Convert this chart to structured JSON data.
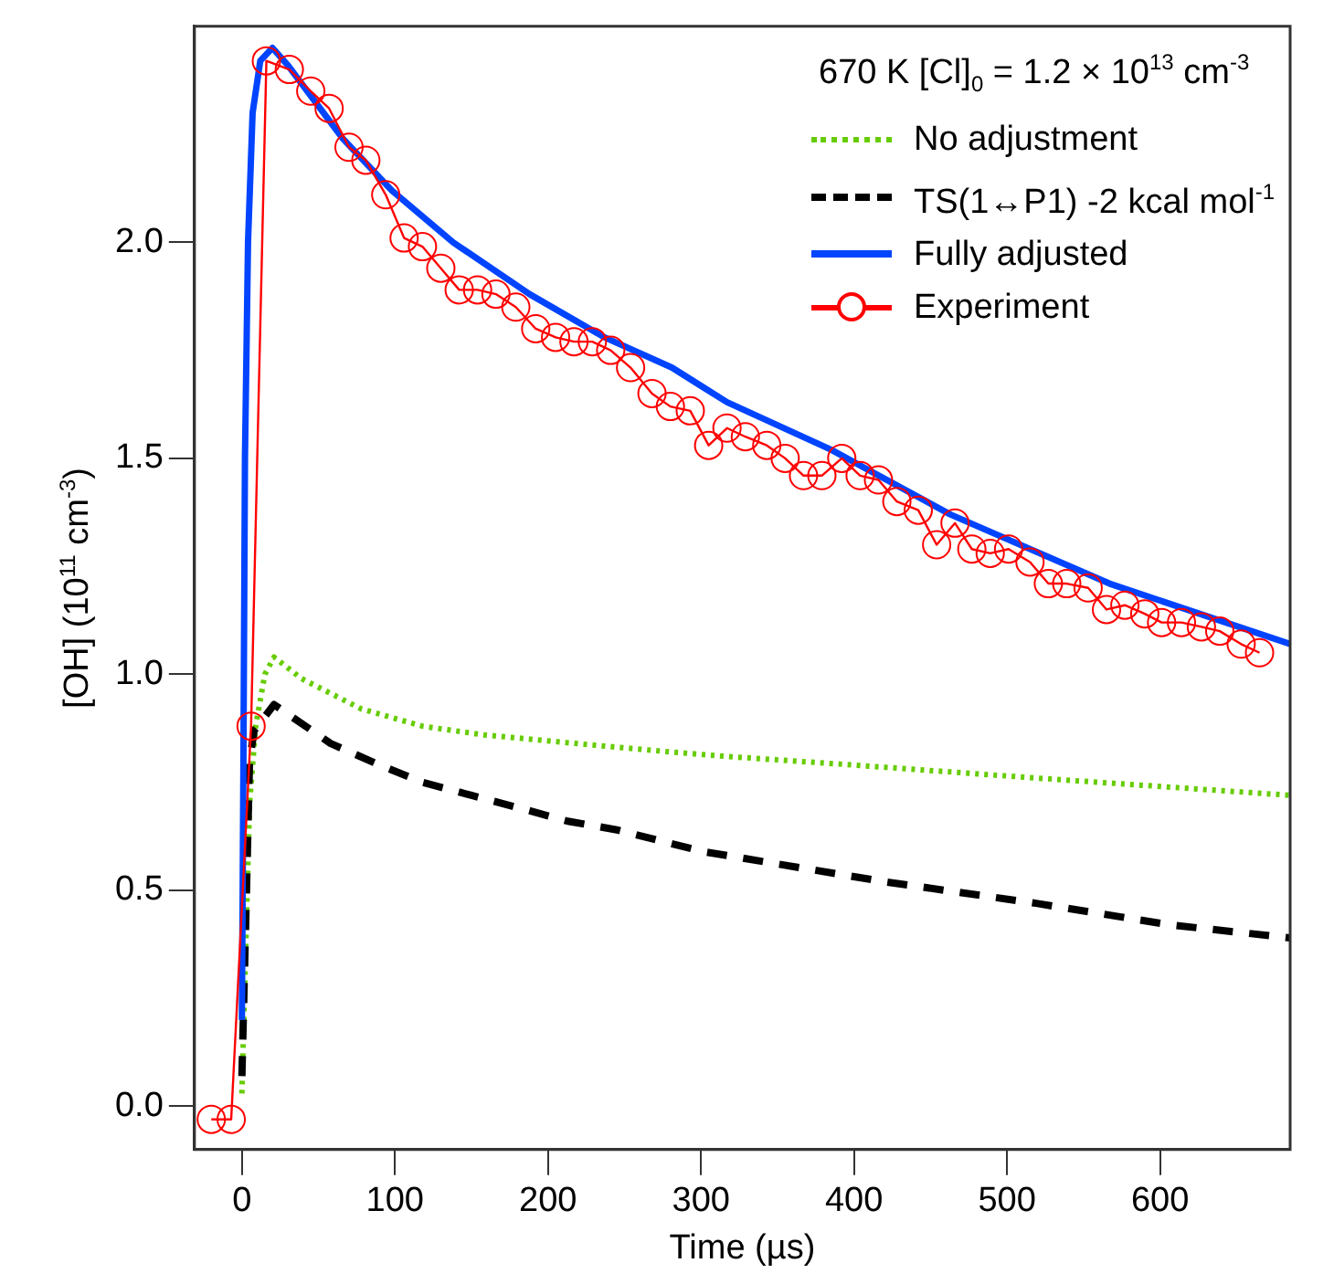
{
  "chart_data": {
    "type": "line",
    "xlabel": "Time (µs)",
    "ylabel": "[OH] (10$^{11}$ cm$^{-3}$)",
    "legend_title": "670 K [Cl]$_{0}$ = 1.2 × 10$^{13}$ cm$^{-3}$",
    "legend": "top right",
    "grid": false,
    "xlim": [
      -31,
      685
    ],
    "xticks": [
      0,
      100,
      200,
      300,
      400,
      500,
      600
    ],
    "ylim": [
      -0.1,
      2.5
    ],
    "yticks": [
      {
        "value": 0,
        "label": "0.0"
      },
      0.5,
      {
        "value": 1,
        "label": "1.0"
      },
      1.5,
      {
        "value": 2,
        "label": "2.0"
      }
    ],
    "series": [
      {
        "name": "No adjustment",
        "color": "#66cc00",
        "line_style": "dotted",
        "marker": "none",
        "x": [
          0,
          2,
          5,
          9,
          15,
          21,
          39,
          78,
          118,
          158,
          218,
          281,
          317,
          400,
          519,
          685
        ],
        "values": [
          0.03,
          0.3,
          0.7,
          0.88,
          1.0,
          1.04,
          0.99,
          0.92,
          0.88,
          0.86,
          0.84,
          0.82,
          0.81,
          0.79,
          0.76,
          0.72
        ]
      },
      {
        "name": "TS(1↔P1) -2 kcal mol$^{-1}$",
        "color": "#000000",
        "line_style": "dashed",
        "marker": "none",
        "x": [
          0,
          3,
          5,
          8,
          21,
          58,
          90,
          118,
          150,
          182,
          213,
          245,
          301,
          420,
          519,
          607,
          685
        ],
        "values": [
          0.07,
          0.5,
          0.8,
          0.87,
          0.93,
          0.84,
          0.79,
          0.75,
          0.72,
          0.69,
          0.66,
          0.64,
          0.59,
          0.52,
          0.47,
          0.42,
          0.39
        ]
      },
      {
        "name": "Fully adjusted",
        "color": "#0044ff",
        "line_style": "solid",
        "marker": "none",
        "x": [
          0,
          1,
          2,
          4,
          7,
          12,
          20,
          30,
          66,
          98,
          138,
          188,
          237,
          281,
          317,
          385,
          463,
          567,
          685
        ],
        "values": [
          0.2,
          0.8,
          1.5,
          2.0,
          2.3,
          2.42,
          2.45,
          2.41,
          2.24,
          2.12,
          2.0,
          1.88,
          1.78,
          1.71,
          1.63,
          1.52,
          1.37,
          1.21,
          1.07
        ]
      },
      {
        "name": "Experiment",
        "color": "#ff0000",
        "line_style": "solid",
        "marker": "circle",
        "x": [
          -20,
          -7,
          6,
          16,
          31,
          45,
          57,
          70,
          81,
          94,
          106,
          118,
          130,
          142,
          154,
          166,
          179,
          192,
          205,
          217,
          229,
          241,
          254,
          268,
          280,
          293,
          305,
          317,
          329,
          343,
          355,
          367,
          379,
          392,
          404,
          416,
          428,
          442,
          454,
          466,
          477,
          489,
          501,
          515,
          527,
          539,
          553,
          565,
          577,
          590,
          601,
          614,
          627,
          639,
          653,
          665
        ],
        "values": [
          -0.03,
          -0.03,
          0.88,
          2.42,
          2.4,
          2.35,
          2.31,
          2.22,
          2.19,
          2.11,
          2.01,
          1.99,
          1.94,
          1.89,
          1.89,
          1.88,
          1.85,
          1.8,
          1.78,
          1.77,
          1.77,
          1.75,
          1.71,
          1.65,
          1.62,
          1.61,
          1.53,
          1.57,
          1.55,
          1.53,
          1.5,
          1.46,
          1.46,
          1.5,
          1.46,
          1.45,
          1.4,
          1.38,
          1.3,
          1.35,
          1.29,
          1.28,
          1.29,
          1.26,
          1.21,
          1.21,
          1.2,
          1.15,
          1.16,
          1.14,
          1.12,
          1.12,
          1.11,
          1.1,
          1.07,
          1.05
        ]
      }
    ]
  }
}
